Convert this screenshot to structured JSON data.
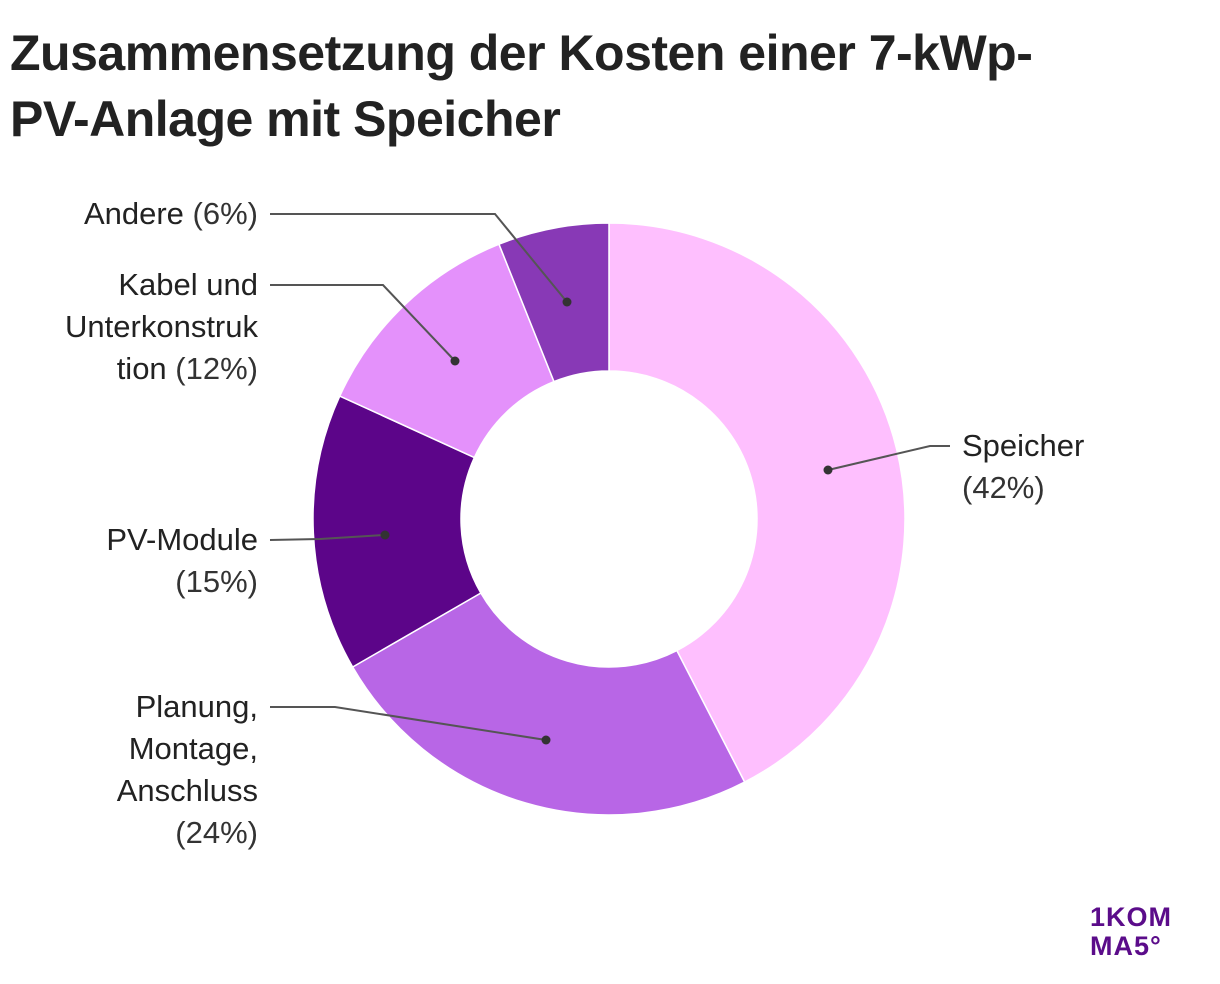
{
  "chart_data": {
    "type": "pie",
    "variant": "donut",
    "title": "Zusammensetzung der Kosten einer 7-kWp-PV-Anlage mit Speicher",
    "start_angle_deg": 0,
    "direction": "clockwise",
    "slices": [
      {
        "label": "Speicher",
        "value": 42,
        "value_label": "(42%)",
        "color": "#FEBFFE",
        "side": "right"
      },
      {
        "label": "Planung, Montage, Anschluss",
        "value": 24,
        "value_label": "(24%)",
        "color": "#B866E6",
        "side": "left"
      },
      {
        "label": "PV-Module",
        "value": 15,
        "value_label": "(15%)",
        "color": "#5C0589",
        "side": "left"
      },
      {
        "label": "Kabel und Unterkonstruktion",
        "value": 12,
        "value_label": "(12%)",
        "color": "#E491FB",
        "side": "left"
      },
      {
        "label": "Andere",
        "value": 6,
        "value_label": "(6%)",
        "color": "#8839B6",
        "side": "left"
      }
    ],
    "units": "%"
  },
  "labels": {
    "speicher": {
      "lines": [
        "Speicher"
      ],
      "pct": "(42%)"
    },
    "planung": {
      "lines": [
        "Planung,",
        "Montage,",
        "Anschluss"
      ],
      "pct": "(24%)"
    },
    "pvmodule": {
      "lines": [
        "PV-Module"
      ],
      "pct": "(15%)"
    },
    "kabel": {
      "lines": [
        "Kabel und",
        "Unterkonstruk",
        "tion"
      ],
      "pct": "(12%)"
    },
    "andere": {
      "lines": [
        "Andere"
      ],
      "pct": "(6%)"
    }
  },
  "title_lines": [
    "Zusammensetzung der Kosten einer 7-kWp-",
    "PV-Anlage mit Speicher"
  ],
  "logo": {
    "line1": "1KOM",
    "line2": "MA5°",
    "color": "#5B0C8A"
  },
  "leader_color": "#555555"
}
